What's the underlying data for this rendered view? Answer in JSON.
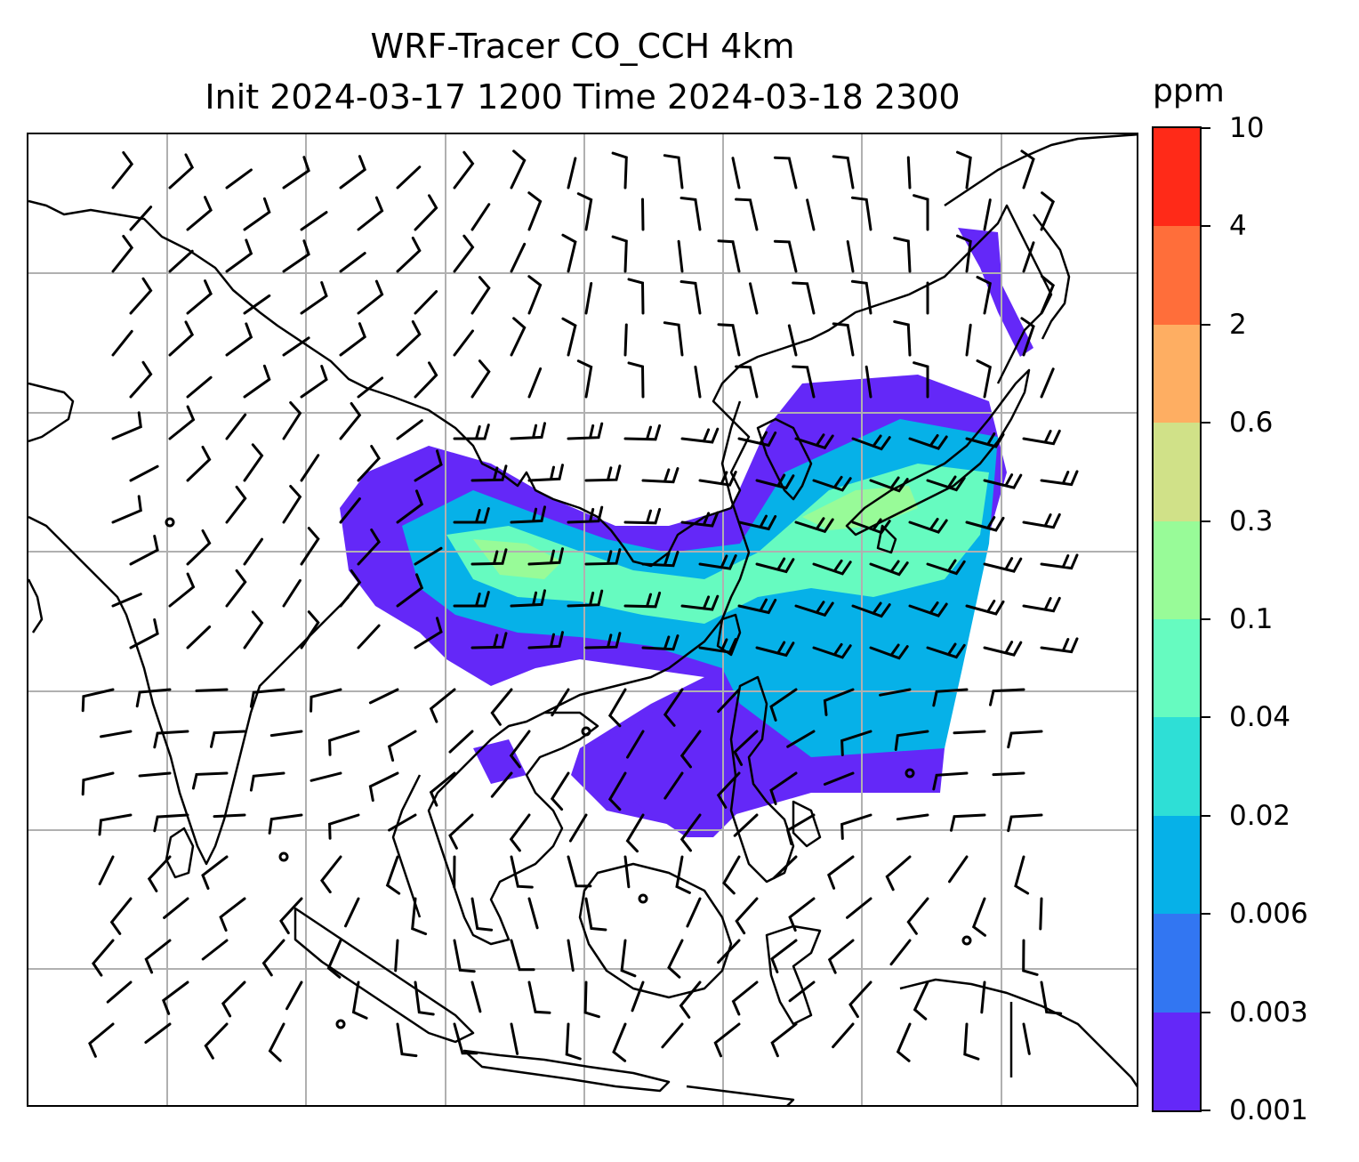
{
  "title": {
    "line1": "WRF-Tracer CO_CCH 4km",
    "line2": "Init 2024-03-17 1200 Time 2024-03-18 2300"
  },
  "colorbar": {
    "units": "ppm",
    "levels": [
      "0.001",
      "0.003",
      "0.006",
      "0.02",
      "0.04",
      "0.1",
      "0.3",
      "0.6",
      "2",
      "4",
      "10"
    ],
    "colors": [
      "#6428f8",
      "#3276f2",
      "#06b1e8",
      "#2edfd6",
      "#66fbc0",
      "#98fb98",
      "#d0e188",
      "#feae62",
      "#ff6e3a",
      "#ff2a18"
    ]
  },
  "map": {
    "graticule": "on",
    "coastline_color": "#000000",
    "grid_color": "#b0b0b0",
    "wind_barbs": "on"
  }
}
